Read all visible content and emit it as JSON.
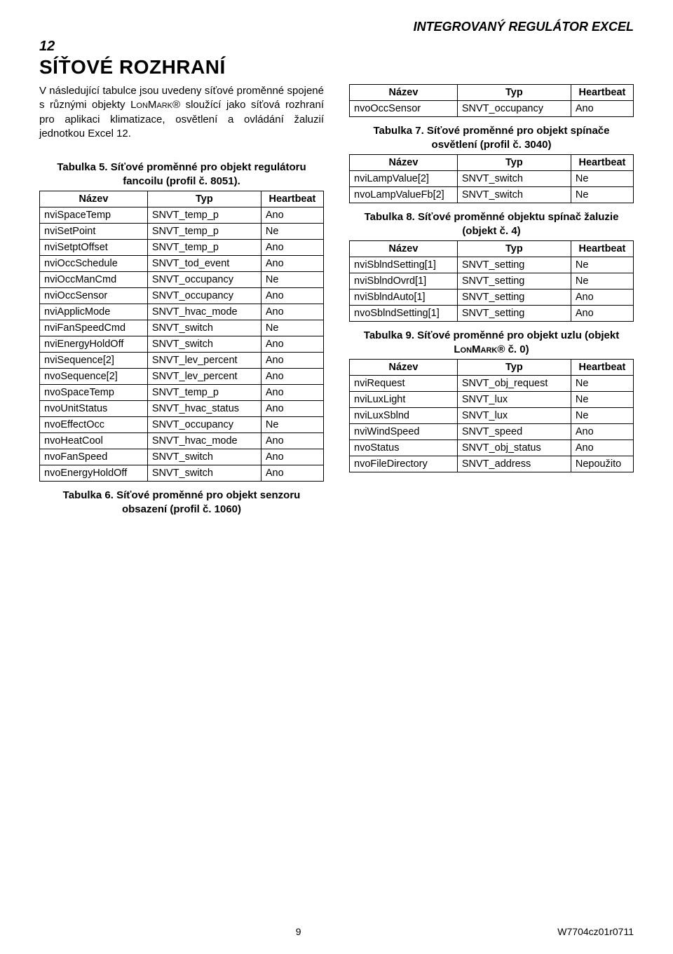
{
  "docHeader": "INTEGROVANÝ REGULÁTOR EXCEL",
  "sectionNumber": "12",
  "sectionTitle": "SÍŤOVÉ ROZHRANÍ",
  "intro": {
    "pre": "V následující tabulce jsou uvedeny síťové proměnné spojené s různými objekty ",
    "lonmark": "LonMark",
    "post": "® sloužící jako síťová rozhraní pro aplikaci klimatizace, osvětlení a ovládání žaluzií jednotkou Excel 12."
  },
  "headers": {
    "name": "Název",
    "type": "Typ",
    "hb": "Heartbeat"
  },
  "table5": {
    "caption": "Tabulka 5. Síťové proměnné pro objekt regulátoru fancoilu (profil č. 8051).",
    "rows": [
      [
        "nviSpaceTemp",
        "SNVT_temp_p",
        "Ano"
      ],
      [
        "nviSetPoint",
        "SNVT_temp_p",
        "Ne"
      ],
      [
        "nviSetptOffset",
        "SNVT_temp_p",
        "Ano"
      ],
      [
        "nviOccSchedule",
        "SNVT_tod_event",
        "Ano"
      ],
      [
        "nviOccManCmd",
        "SNVT_occupancy",
        "Ne"
      ],
      [
        "nviOccSensor",
        "SNVT_occupancy",
        "Ano"
      ],
      [
        "nviApplicMode",
        "SNVT_hvac_mode",
        "Ano"
      ],
      [
        "nviFanSpeedCmd",
        "SNVT_switch",
        "Ne"
      ],
      [
        "nviEnergyHoldOff",
        "SNVT_switch",
        "Ano"
      ],
      [
        "nviSequence[2]",
        "SNVT_lev_percent",
        "Ano"
      ],
      [
        "nvoSequence[2]",
        "SNVT_lev_percent",
        "Ano"
      ],
      [
        "nvoSpaceTemp",
        "SNVT_temp_p",
        "Ano"
      ],
      [
        "nvoUnitStatus",
        "SNVT_hvac_status",
        "Ano"
      ],
      [
        "nvoEffectOcc",
        "SNVT_occupancy",
        "Ne"
      ],
      [
        "nvoHeatCool",
        "SNVT_hvac_mode",
        "Ano"
      ],
      [
        "nvoFanSpeed",
        "SNVT_switch",
        "Ano"
      ],
      [
        "nvoEnergyHoldOff",
        "SNVT_switch",
        "Ano"
      ]
    ]
  },
  "table6": {
    "caption": "Tabulka 6. Síťové proměnné pro objekt senzoru obsazení (profil č. 1060)",
    "rows": [
      [
        "nvoOccSensor",
        "SNVT_occupancy",
        "Ano"
      ]
    ]
  },
  "table7": {
    "caption": "Tabulka 7. Síťové proměnné pro objekt spínače osvětlení (profil č. 3040)",
    "rows": [
      [
        "nviLampValue[2]",
        "SNVT_switch",
        "Ne"
      ],
      [
        "nvoLampValueFb[2]",
        "SNVT_switch",
        "Ne"
      ]
    ]
  },
  "table8": {
    "caption": "Tabulka 8. Síťové proměnné  objektu spínač žaluzie (objekt č. 4)",
    "rows": [
      [
        "nviSblndSetting[1]",
        "SNVT_setting",
        "Ne"
      ],
      [
        "nviSblndOvrd[1]",
        "SNVT_setting",
        "Ne"
      ],
      [
        "nviSblndAuto[1]",
        "SNVT_setting",
        "Ano"
      ],
      [
        "nvoSblndSetting[1]",
        "SNVT_setting",
        "Ano"
      ]
    ]
  },
  "table9": {
    "captionPre": "Tabulka 9. Síťové proměnné pro objekt uzlu (objekt ",
    "captionLonmark": "LonMark",
    "captionPost": "® č. 0)",
    "rows": [
      [
        "nviRequest",
        "SNVT_obj_request",
        "Ne"
      ],
      [
        "nviLuxLight",
        "SNVT_lux",
        "Ne"
      ],
      [
        "nviLuxSblnd",
        "SNVT_lux",
        "Ne"
      ],
      [
        "nviWindSpeed",
        "SNVT_speed",
        "Ano"
      ],
      [
        "nvoStatus",
        "SNVT_obj_status",
        "Ano"
      ],
      [
        "nvoFileDirectory",
        "SNVT_address",
        "Nepoužito"
      ]
    ]
  },
  "footer": {
    "pageNumber": "9",
    "docCode": "W7704cz01r0711"
  }
}
